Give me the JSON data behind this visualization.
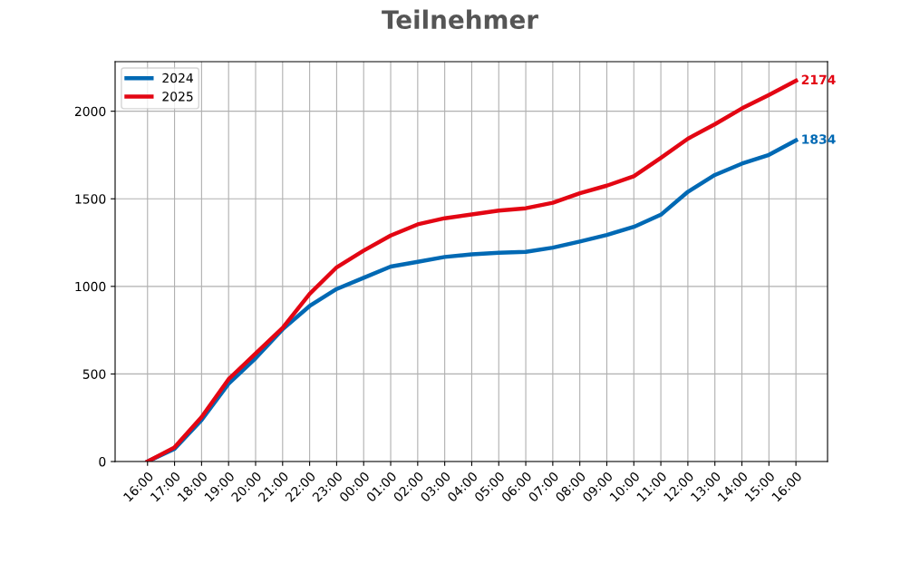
{
  "chart_data": {
    "type": "line",
    "title": "Teilnehmer",
    "categories": [
      "16:00",
      "17:00",
      "18:00",
      "19:00",
      "20:00",
      "21:00",
      "22:00",
      "23:00",
      "00:00",
      "01:00",
      "02:00",
      "03:00",
      "04:00",
      "05:00",
      "06:00",
      "07:00",
      "08:00",
      "09:00",
      "10:00",
      "11:00",
      "12:00",
      "13:00",
      "14:00",
      "15:00",
      "16:00"
    ],
    "series": [
      {
        "name": "2024",
        "color": "#0069b4",
        "values": [
          0,
          72,
          237,
          444,
          590,
          755,
          888,
          985,
          1049,
          1113,
          1140,
          1168,
          1183,
          1192,
          1197,
          1221,
          1256,
          1294,
          1340,
          1409,
          1540,
          1636,
          1701,
          1751,
          1834
        ],
        "value_labels": [
          null,
          null,
          null,
          null,
          null,
          null,
          null,
          null,
          null,
          null,
          null,
          null,
          null,
          null,
          null,
          null,
          null,
          null,
          null,
          null,
          null,
          null,
          null,
          null,
          "1834"
        ]
      },
      {
        "name": "2025",
        "color": "#e30613",
        "values": [
          0,
          81,
          254,
          470,
          617,
          763,
          957,
          1109,
          1204,
          1290,
          1354,
          1389,
          1411,
          1433,
          1446,
          1477,
          1532,
          1575,
          1629,
          1734,
          1843,
          1926,
          2016,
          2093,
          2174
        ],
        "value_labels": [
          null,
          null,
          null,
          null,
          null,
          null,
          null,
          null,
          null,
          null,
          null,
          null,
          null,
          null,
          null,
          null,
          null,
          null,
          null,
          null,
          null,
          null,
          null,
          null,
          "2174"
        ]
      }
    ],
    "ylim": [
      0,
      2283
    ],
    "yticks": [
      0,
      500,
      1000,
      1500,
      2000
    ],
    "grid": true,
    "legend": "top left",
    "marker": "none",
    "line_style": "solid"
  }
}
